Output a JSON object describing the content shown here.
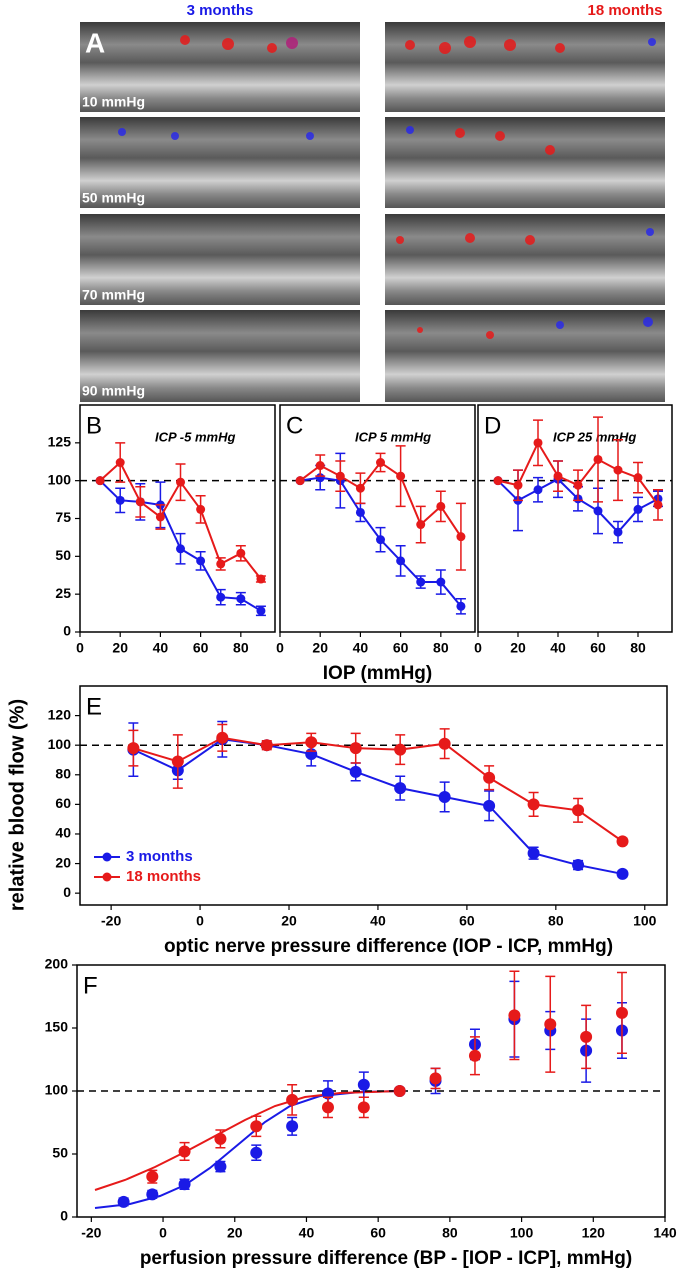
{
  "panel_a": {
    "label": "A",
    "columns": [
      "3 months",
      "18 months"
    ],
    "rows": [
      "10 mmHg",
      "50 mmHg",
      "70 mmHg",
      "90 mmHg"
    ]
  },
  "y_label": "relative blood flow (%)",
  "chart_data": [
    {
      "type": "line",
      "panel": "B",
      "title": "ICP -5 mmHg",
      "x": [
        10,
        20,
        30,
        40,
        50,
        60,
        70,
        80,
        90
      ],
      "series": [
        {
          "color": "#1a1ae6",
          "values": [
            100,
            87,
            86,
            84,
            55,
            47,
            23,
            22,
            14
          ],
          "errors": [
            0,
            8,
            12,
            15,
            10,
            6,
            5,
            4,
            3
          ]
        },
        {
          "color": "#e61a1a",
          "values": [
            100,
            112,
            86,
            76,
            99,
            81,
            45,
            52,
            35
          ],
          "errors": [
            0,
            13,
            10,
            8,
            12,
            9,
            4,
            5,
            2
          ]
        }
      ],
      "xlim": [
        0,
        97
      ],
      "ylim": [
        0,
        150
      ],
      "xticks": [
        0,
        20,
        40,
        60,
        80
      ],
      "yticks": [
        0,
        25,
        50,
        75,
        100,
        125
      ],
      "refline": 100
    },
    {
      "type": "line",
      "panel": "C",
      "title": "ICP 5 mmHg",
      "x_label": "IOP (mmHg)",
      "x": [
        10,
        20,
        30,
        40,
        50,
        60,
        70,
        80,
        90
      ],
      "series": [
        {
          "color": "#1a1ae6",
          "values": [
            100,
            102,
            100,
            79,
            61,
            47,
            33,
            33,
            17
          ],
          "errors": [
            0,
            8,
            18,
            6,
            8,
            10,
            4,
            8,
            5
          ]
        },
        {
          "color": "#e61a1a",
          "values": [
            100,
            110,
            103,
            95,
            112,
            103,
            71,
            83,
            63
          ],
          "errors": [
            0,
            7,
            10,
            10,
            6,
            20,
            12,
            10,
            22
          ]
        }
      ],
      "xlim": [
        0,
        97
      ],
      "ylim": [
        0,
        150
      ],
      "xticks": [
        0,
        20,
        40,
        60,
        80
      ],
      "refline": 100
    },
    {
      "type": "line",
      "panel": "D",
      "title": "ICP 25 mmHg",
      "x": [
        10,
        20,
        30,
        40,
        50,
        60,
        70,
        80,
        90
      ],
      "series": [
        {
          "color": "#1a1ae6",
          "values": [
            100,
            87,
            94,
            101,
            88,
            80,
            66,
            81,
            88
          ],
          "errors": [
            0,
            20,
            8,
            12,
            8,
            15,
            7,
            8,
            5
          ]
        },
        {
          "color": "#e61a1a",
          "values": [
            100,
            97,
            125,
            103,
            97,
            114,
            107,
            102,
            84
          ],
          "errors": [
            0,
            10,
            15,
            10,
            10,
            28,
            20,
            10,
            10
          ]
        }
      ],
      "xlim": [
        0,
        97
      ],
      "ylim": [
        0,
        150
      ],
      "xticks": [
        0,
        20,
        40,
        60,
        80
      ],
      "refline": 100
    },
    {
      "type": "line",
      "panel": "E",
      "x_label": "optic nerve pressure difference (IOP - ICP, mmHg)",
      "x": [
        -15,
        -5,
        5,
        15,
        25,
        35,
        45,
        55,
        65,
        75,
        85,
        95
      ],
      "series": [
        {
          "name": "3 months",
          "color": "#1a1ae6",
          "values": [
            97,
            83,
            104,
            100,
            94,
            82,
            71,
            65,
            59,
            27,
            19,
            13
          ],
          "errors": [
            18,
            6,
            12,
            2,
            8,
            6,
            8,
            10,
            10,
            4,
            3,
            2
          ]
        },
        {
          "name": "18 months",
          "color": "#e61a1a",
          "values": [
            98,
            89,
            105,
            100,
            102,
            98,
            97,
            101,
            78,
            60,
            56,
            35
          ],
          "errors": [
            12,
            18,
            9,
            3,
            6,
            10,
            10,
            10,
            8,
            8,
            8,
            2
          ]
        }
      ],
      "xlim": [
        -27,
        105
      ],
      "ylim": [
        -8,
        140
      ],
      "xticks": [
        -20,
        0,
        20,
        40,
        60,
        80,
        100
      ],
      "yticks": [
        0,
        20,
        40,
        60,
        80,
        100,
        120
      ],
      "refline": 100,
      "legend": "lower left"
    },
    {
      "type": "scatter",
      "panel": "F",
      "x_label": "perfusion pressure difference (BP - [IOP - ICP], mmHg)",
      "x": [
        -11,
        -3,
        6,
        16,
        26,
        36,
        46,
        56,
        66,
        76,
        87,
        98,
        108,
        118,
        128
      ],
      "series": [
        {
          "color": "#1a1ae6",
          "values": [
            12,
            18,
            26,
            40,
            51,
            72,
            98,
            105,
            100,
            108,
            137,
            157,
            148,
            132,
            148
          ],
          "errors": [
            3,
            3,
            4,
            4,
            6,
            7,
            10,
            10,
            2,
            10,
            12,
            30,
            15,
            25,
            22
          ]
        },
        {
          "color": "#e61a1a",
          "values": [
            null,
            32,
            52,
            62,
            72,
            93,
            87,
            87,
            100,
            110,
            128,
            160,
            153,
            143,
            162
          ],
          "errors": [
            null,
            5,
            7,
            7,
            8,
            12,
            8,
            8,
            2,
            8,
            15,
            35,
            38,
            25,
            32
          ]
        }
      ],
      "xlim": [
        -24,
        140
      ],
      "ylim": [
        0,
        200
      ],
      "xticks": [
        -20,
        0,
        20,
        40,
        60,
        80,
        100,
        120,
        140
      ],
      "yticks": [
        0,
        50,
        100,
        150,
        200
      ],
      "refline": 100
    }
  ]
}
